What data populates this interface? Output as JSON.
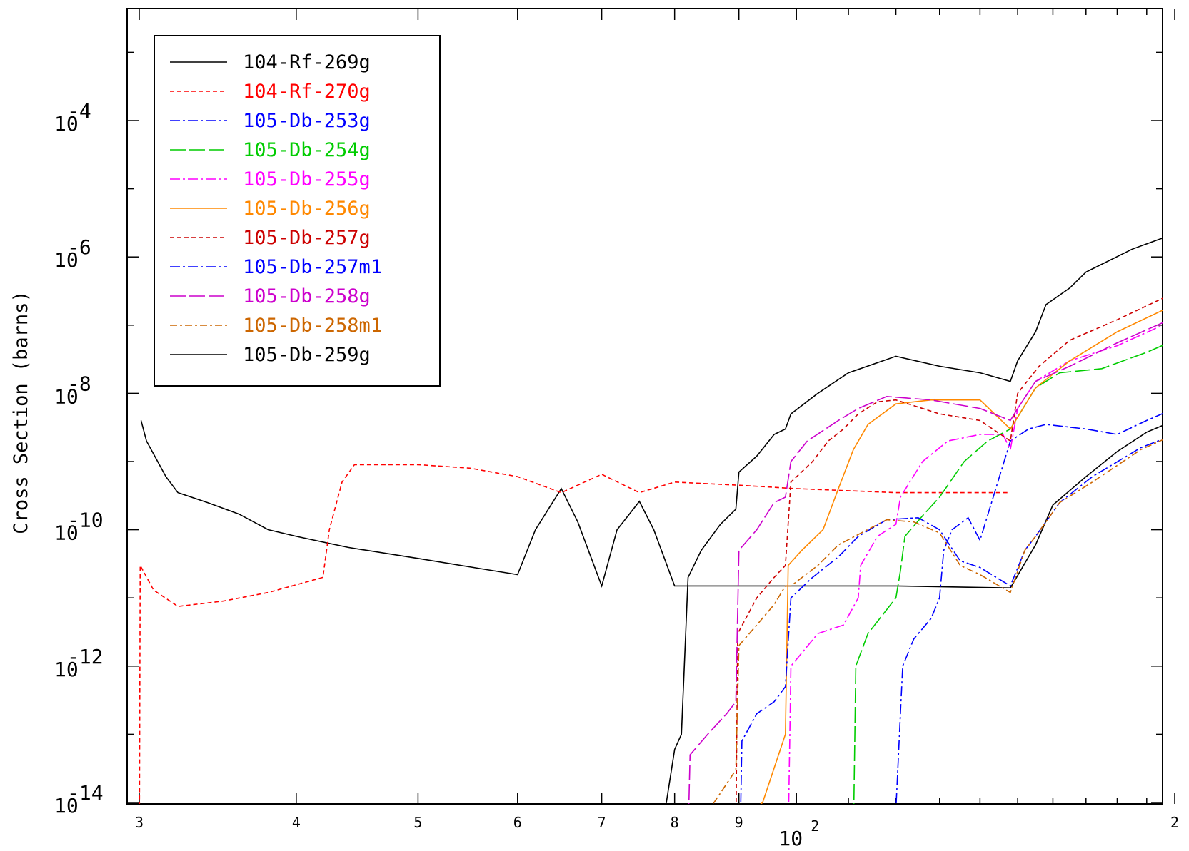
{
  "chart_data": {
    "type": "line",
    "title": "",
    "xlabel": "",
    "ylabel": "Cross Section (barns)",
    "x_scale": "log",
    "y_scale": "log",
    "xlim": [
      29.8,
      201
    ],
    "ylim": [
      3e-15,
      0.01
    ],
    "grid": false,
    "legend_position": "top-left",
    "x_ticks": [
      {
        "value": 30,
        "label": "3"
      },
      {
        "value": 40,
        "label": "4"
      },
      {
        "value": 50,
        "label": "5"
      },
      {
        "value": 60,
        "label": "6"
      },
      {
        "value": 70,
        "label": "7"
      },
      {
        "value": 80,
        "label": "8"
      },
      {
        "value": 90,
        "label": "9"
      },
      {
        "value": 200,
        "label": "2"
      }
    ],
    "x_decade_label": {
      "value": 100,
      "base": "10",
      "exp": "2"
    },
    "y_ticks": [
      {
        "value": 0.0001,
        "base": "10",
        "exp": "-4"
      },
      {
        "value": 1e-06,
        "base": "10",
        "exp": "-6"
      },
      {
        "value": 1e-08,
        "base": "10",
        "exp": "-8"
      },
      {
        "value": 1e-10,
        "base": "10",
        "exp": "-10"
      },
      {
        "value": 1e-12,
        "base": "10",
        "exp": "-12"
      },
      {
        "value": 1e-14,
        "base": "10",
        "exp": "-14"
      }
    ],
    "series": [
      {
        "name": "104-Rf-269g",
        "color": "#000000",
        "dash": "solid",
        "points": [
          [
            30.1,
            4e-09
          ],
          [
            30.4,
            2e-09
          ],
          [
            31.5,
            6e-10
          ],
          [
            32.2,
            3.5e-10
          ],
          [
            34,
            2.5e-10
          ],
          [
            36,
            1.7e-10
          ],
          [
            38,
            1e-10
          ],
          [
            40,
            8e-11
          ],
          [
            44,
            5.5e-11
          ],
          [
            50,
            3.8e-11
          ],
          [
            56,
            2.7e-11
          ],
          [
            60,
            2.2e-11
          ],
          [
            62,
            1e-10
          ],
          [
            65,
            4e-10
          ],
          [
            67,
            1.3e-10
          ],
          [
            70,
            1.5e-11
          ],
          [
            72,
            1e-10
          ],
          [
            75,
            2.6e-10
          ],
          [
            77,
            1e-10
          ],
          [
            80,
            1.5e-11
          ],
          [
            90,
            1.5e-11
          ],
          [
            100,
            1.5e-11
          ],
          [
            120,
            1.5e-11
          ],
          [
            148,
            1.4e-11
          ],
          [
            155,
            6e-11
          ],
          [
            160,
            2.3e-10
          ],
          [
            170,
            6e-10
          ],
          [
            180,
            1.4e-09
          ],
          [
            190,
            2.7e-09
          ],
          [
            200,
            4e-09
          ]
        ]
      },
      {
        "name": "104-Rf-270g",
        "color": "#ff0000",
        "dash": "6,4",
        "points": [
          [
            30,
            1e-15
          ],
          [
            30.05,
            3e-11
          ],
          [
            30.8,
            1.3e-11
          ],
          [
            32.2,
            7.5e-12
          ],
          [
            35,
            9e-12
          ],
          [
            38,
            1.2e-11
          ],
          [
            42,
            2e-11
          ],
          [
            42.5,
            1e-10
          ],
          [
            43.5,
            5e-10
          ],
          [
            44.5,
            9e-10
          ],
          [
            50,
            9e-10
          ],
          [
            55,
            8e-10
          ],
          [
            60,
            6e-10
          ],
          [
            65,
            3.5e-10
          ],
          [
            70,
            6.5e-10
          ],
          [
            75,
            3.5e-10
          ],
          [
            80,
            5e-10
          ],
          [
            90,
            4.5e-10
          ],
          [
            100,
            4e-10
          ],
          [
            120,
            3.5e-10
          ],
          [
            148,
            3.5e-10
          ]
        ]
      },
      {
        "name": "105-Db-253g",
        "color": "#0000ff",
        "dash": "14,4,3,4",
        "points": [
          [
            112,
            3e-15
          ],
          [
            116,
            5e-15
          ],
          [
            120,
            8e-15
          ],
          [
            121,
            2e-13
          ],
          [
            121.5,
            1e-12
          ],
          [
            124,
            2.5e-12
          ],
          [
            128,
            5e-12
          ],
          [
            130,
            1e-11
          ],
          [
            131,
            5e-11
          ],
          [
            133,
            1e-10
          ],
          [
            137,
            1.5e-10
          ],
          [
            140,
            7e-11
          ],
          [
            148,
            2e-09
          ],
          [
            153,
            3e-09
          ],
          [
            158,
            3.5e-09
          ],
          [
            170,
            3e-09
          ],
          [
            180,
            2.5e-09
          ],
          [
            190,
            4e-09
          ],
          [
            200,
            6e-09
          ]
        ]
      },
      {
        "name": "105-Db-254g",
        "color": "#00cc00",
        "dash": "22,5",
        "points": [
          [
            111,
            3e-15
          ],
          [
            111.5,
            1e-12
          ],
          [
            114,
            3e-12
          ],
          [
            120,
            1e-11
          ],
          [
            121,
            2.5e-11
          ],
          [
            122,
            8e-11
          ],
          [
            126,
            1.6e-10
          ],
          [
            130,
            3e-10
          ],
          [
            136,
            1e-09
          ],
          [
            142,
            2e-09
          ],
          [
            148,
            3e-09
          ],
          [
            155,
            1.2e-08
          ],
          [
            162,
            2e-08
          ],
          [
            175,
            2.3e-08
          ],
          [
            190,
            4e-08
          ],
          [
            200,
            6e-08
          ]
        ]
      },
      {
        "name": "105-Db-255g",
        "color": "#ff00ff",
        "dash": "14,4,3,4",
        "points": [
          [
            98.5,
            3e-15
          ],
          [
            99,
            1e-12
          ],
          [
            104,
            3e-12
          ],
          [
            109,
            4e-12
          ],
          [
            112,
            1e-11
          ],
          [
            112.5,
            3e-11
          ],
          [
            116,
            8e-11
          ],
          [
            120,
            1.2e-10
          ],
          [
            121,
            3e-10
          ],
          [
            126,
            1e-09
          ],
          [
            132,
            2e-09
          ],
          [
            140,
            2.5e-09
          ],
          [
            146,
            2.5e-09
          ],
          [
            148,
            1.5e-09
          ],
          [
            150,
            6e-09
          ],
          [
            155,
            1.5e-08
          ],
          [
            165,
            3e-08
          ],
          [
            180,
            5e-08
          ],
          [
            200,
            1.2e-07
          ]
        ]
      },
      {
        "name": "105-Db-256g",
        "color": "#ff8800",
        "dash": "solid",
        "points": [
          [
            90.5,
            3e-15
          ],
          [
            91,
            6e-15
          ],
          [
            94,
            1e-14
          ],
          [
            98,
            1e-13
          ],
          [
            98.5,
            3e-11
          ],
          [
            101,
            5e-11
          ],
          [
            105,
            1e-10
          ],
          [
            108,
            4e-10
          ],
          [
            111,
            1.5e-09
          ],
          [
            114,
            3.5e-09
          ],
          [
            120,
            7e-09
          ],
          [
            128,
            8e-09
          ],
          [
            140,
            8e-09
          ],
          [
            148,
            3e-09
          ],
          [
            155,
            1.2e-08
          ],
          [
            165,
            3e-08
          ],
          [
            180,
            8e-08
          ],
          [
            200,
            2e-07
          ]
        ]
      },
      {
        "name": "105-Db-257g",
        "color": "#cc0000",
        "dash": "6,4",
        "points": [
          [
            89.5,
            3e-15
          ],
          [
            89.8,
            3e-12
          ],
          [
            93,
            1e-11
          ],
          [
            96,
            2e-11
          ],
          [
            98,
            3e-11
          ],
          [
            99,
            5e-10
          ],
          [
            103,
            1e-09
          ],
          [
            106,
            2e-09
          ],
          [
            109,
            3e-09
          ],
          [
            112,
            5e-09
          ],
          [
            116,
            7.5e-09
          ],
          [
            120,
            8e-09
          ],
          [
            130,
            5e-09
          ],
          [
            140,
            4e-09
          ],
          [
            148,
            2e-09
          ],
          [
            150,
            1e-08
          ],
          [
            156,
            2.5e-08
          ],
          [
            165,
            6e-08
          ],
          [
            180,
            1.2e-07
          ],
          [
            200,
            3e-07
          ]
        ]
      },
      {
        "name": "105-Db-257m1",
        "color": "#0000ff",
        "dash": "14,4,3,4",
        "points": [
          [
            90.2,
            3e-15
          ],
          [
            90.5,
            8e-14
          ],
          [
            93,
            2e-13
          ],
          [
            96,
            3e-13
          ],
          [
            98,
            5e-13
          ],
          [
            99,
            1e-11
          ],
          [
            103,
            2e-11
          ],
          [
            108,
            4e-11
          ],
          [
            112,
            8e-11
          ],
          [
            118,
            1.4e-10
          ],
          [
            125,
            1.5e-10
          ],
          [
            130,
            1e-10
          ],
          [
            135,
            3.5e-11
          ],
          [
            140,
            2.8e-11
          ],
          [
            148,
            1.5e-11
          ],
          [
            152,
            5e-11
          ],
          [
            155,
            8e-11
          ],
          [
            162,
            2.5e-10
          ],
          [
            172,
            6e-10
          ],
          [
            188,
            1.6e-09
          ],
          [
            200,
            2.5e-09
          ]
        ]
      },
      {
        "name": "105-Db-258g",
        "color": "#cc00cc",
        "dash": "22,5",
        "points": [
          [
            82,
            3e-15
          ],
          [
            82.3,
            5e-14
          ],
          [
            85,
            1e-13
          ],
          [
            88,
            2e-13
          ],
          [
            89.5,
            3e-13
          ],
          [
            90,
            5e-11
          ],
          [
            93,
            1e-10
          ],
          [
            96,
            2.5e-10
          ],
          [
            98,
            3e-10
          ],
          [
            99,
            1e-09
          ],
          [
            102,
            2e-09
          ],
          [
            108,
            4e-09
          ],
          [
            112,
            6e-09
          ],
          [
            118,
            9e-09
          ],
          [
            128,
            8e-09
          ],
          [
            140,
            6e-09
          ],
          [
            148,
            4e-09
          ],
          [
            150,
            6e-09
          ],
          [
            155,
            1.5e-08
          ],
          [
            165,
            2.5e-08
          ],
          [
            180,
            5.5e-08
          ],
          [
            200,
            1.3e-07
          ]
        ]
      },
      {
        "name": "105-Db-258m1",
        "color": "#cc6600",
        "dash": "10,4,3,4",
        "points": [
          [
            82,
            3e-15
          ],
          [
            83,
            6e-15
          ],
          [
            86,
            1e-14
          ],
          [
            89.5,
            3e-14
          ],
          [
            90,
            2e-12
          ],
          [
            93,
            4e-12
          ],
          [
            96,
            8e-12
          ],
          [
            98,
            1.5e-11
          ],
          [
            99,
            1.5e-11
          ],
          [
            104,
            3e-11
          ],
          [
            108,
            6e-11
          ],
          [
            112,
            8.5e-11
          ],
          [
            118,
            1.4e-10
          ],
          [
            124,
            1.3e-10
          ],
          [
            130,
            9e-11
          ],
          [
            135,
            3e-11
          ],
          [
            140,
            2.2e-11
          ],
          [
            148,
            1.2e-11
          ],
          [
            152,
            5e-11
          ],
          [
            155,
            8e-11
          ],
          [
            162,
            2.5e-10
          ],
          [
            172,
            5e-10
          ],
          [
            188,
            1.5e-09
          ],
          [
            200,
            2.5e-09
          ]
        ]
      },
      {
        "name": "105-Db-259g",
        "color": "#000000",
        "dash": "solid",
        "points": [
          [
            78,
            3e-15
          ],
          [
            80,
            6e-14
          ],
          [
            81,
            1e-13
          ],
          [
            82,
            2e-11
          ],
          [
            84,
            5e-11
          ],
          [
            87,
            1.2e-10
          ],
          [
            89.5,
            2e-10
          ],
          [
            90,
            7e-10
          ],
          [
            93,
            1.2e-09
          ],
          [
            96,
            2.5e-09
          ],
          [
            98,
            3e-09
          ],
          [
            99,
            5e-09
          ],
          [
            104,
            1e-08
          ],
          [
            110,
            2e-08
          ],
          [
            120,
            3.5e-08
          ],
          [
            130,
            2.5e-08
          ],
          [
            140,
            2e-08
          ],
          [
            148,
            1.5e-08
          ],
          [
            150,
            3e-08
          ],
          [
            155,
            8e-08
          ],
          [
            158,
            2e-07
          ],
          [
            165,
            3.5e-07
          ],
          [
            170,
            6e-07
          ],
          [
            185,
            1.3e-06
          ],
          [
            200,
            2.2e-06
          ]
        ]
      }
    ]
  }
}
